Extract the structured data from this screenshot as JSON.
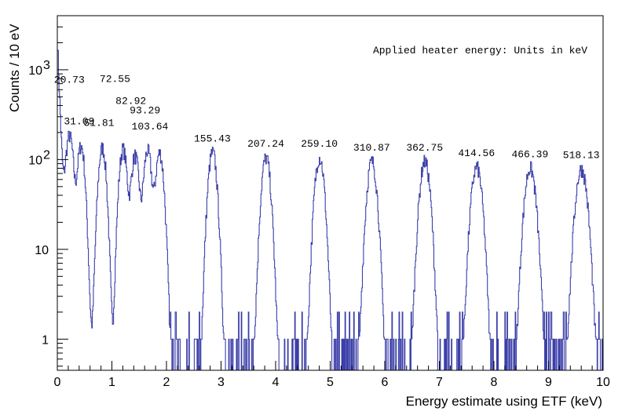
{
  "chart_data": {
    "type": "histogram",
    "x_title": "Energy estimate using ETF (keV)",
    "y_title": "Counts / 10 eV",
    "annotation": "Applied heater energy: Units in keV",
    "y_scale": "log",
    "xlim": [
      0,
      10
    ],
    "ylim": [
      0.45,
      4000
    ],
    "grid": false,
    "legend": "none",
    "line_color": "#3b3fa8",
    "x_ticks": [
      "0",
      "1",
      "2",
      "3",
      "4",
      "5",
      "6",
      "7",
      "8",
      "9",
      "10"
    ],
    "y_ticks": [
      {
        "value": 1,
        "label": "1",
        "exp": ""
      },
      {
        "value": 10,
        "label": "10",
        "exp": ""
      },
      {
        "value": 100,
        "label": "10",
        "exp": "2"
      },
      {
        "value": 1000,
        "label": "10",
        "exp": "3"
      }
    ],
    "peaks": [
      {
        "label": "20.73",
        "x": 0.22,
        "counts": 175
      },
      {
        "label": "31.09",
        "x": 0.43,
        "counts": 140
      },
      {
        "label": "51.81",
        "x": 0.82,
        "counts": 135
      },
      {
        "label": "72.55",
        "x": 1.2,
        "counts": 130
      },
      {
        "label": "82.92",
        "x": 1.42,
        "counts": 110
      },
      {
        "label": "93.29",
        "x": 1.65,
        "counts": 125
      },
      {
        "label": "103.64",
        "x": 1.87,
        "counts": 118
      },
      {
        "label": "155.43",
        "x": 2.84,
        "counts": 120
      },
      {
        "label": "207.24",
        "x": 3.82,
        "counts": 105
      },
      {
        "label": "259.10",
        "x": 4.8,
        "counts": 105
      },
      {
        "label": "310.87",
        "x": 5.76,
        "counts": 95
      },
      {
        "label": "362.75",
        "x": 6.73,
        "counts": 95
      },
      {
        "label": "414.56",
        "x": 7.68,
        "counts": 82
      },
      {
        "label": "466.39",
        "x": 8.66,
        "counts": 80
      },
      {
        "label": "518.13",
        "x": 9.6,
        "counts": 78
      }
    ]
  }
}
